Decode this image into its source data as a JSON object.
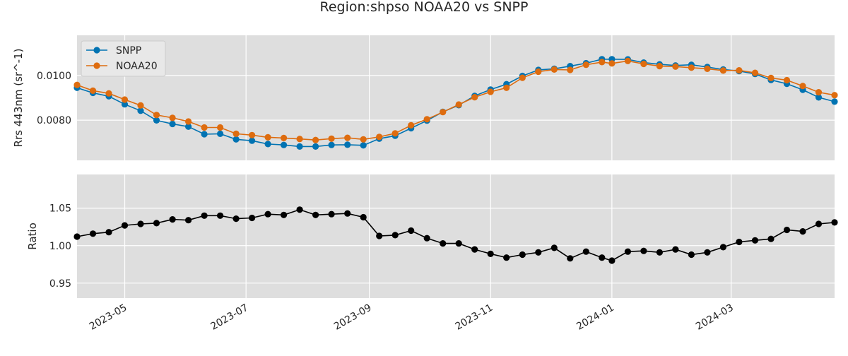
{
  "chart_data": {
    "title": "Region:shpso NOAA20 vs SNPP",
    "type": "line",
    "x_dates": [
      "2023-04-07",
      "2023-04-15",
      "2023-04-23",
      "2023-05-01",
      "2023-05-09",
      "2023-05-17",
      "2023-05-25",
      "2023-06-02",
      "2023-06-10",
      "2023-06-18",
      "2023-06-26",
      "2023-07-04",
      "2023-07-12",
      "2023-07-20",
      "2023-07-28",
      "2023-08-05",
      "2023-08-13",
      "2023-08-21",
      "2023-08-29",
      "2023-09-06",
      "2023-09-14",
      "2023-09-22",
      "2023-09-30",
      "2023-10-08",
      "2023-10-16",
      "2023-10-24",
      "2023-11-01",
      "2023-11-09",
      "2023-11-17",
      "2023-11-25",
      "2023-12-03",
      "2023-12-11",
      "2023-12-19",
      "2023-12-27",
      "2024-01-01",
      "2024-01-09",
      "2024-01-17",
      "2024-01-25",
      "2024-02-02",
      "2024-02-10",
      "2024-02-18",
      "2024-02-26",
      "2024-03-05",
      "2024-03-13",
      "2024-03-21",
      "2024-03-29",
      "2024-04-06",
      "2024-04-14",
      "2024-04-22"
    ],
    "x_ticks": [
      "2023-05",
      "2023-07",
      "2023-09",
      "2023-11",
      "2024-01",
      "2024-03"
    ],
    "x_range": [
      "2023-04-07",
      "2024-04-22"
    ],
    "panels": [
      {
        "ylabel": "Rrs 443nm (sr^-1)",
        "ylim": [
          0.0062,
          0.0118
        ],
        "yticks": [
          "0.0080",
          "0.0100"
        ],
        "legend": {
          "position": "top-left"
        },
        "series": [
          {
            "name": "SNPP",
            "color": "#0173b2",
            "values": [
              0.00945,
              0.00922,
              0.00907,
              0.00871,
              0.00842,
              0.00799,
              0.00783,
              0.00771,
              0.00737,
              0.00739,
              0.00714,
              0.00708,
              0.00693,
              0.00689,
              0.00682,
              0.00682,
              0.00689,
              0.0069,
              0.00687,
              0.00717,
              0.0073,
              0.00764,
              0.00798,
              0.00837,
              0.00867,
              0.00909,
              0.00937,
              0.00961,
              0.00998,
              0.01025,
              0.0103,
              0.01042,
              0.01055,
              0.01073,
              0.01073,
              0.01072,
              0.01058,
              0.0105,
              0.01045,
              0.01048,
              0.01038,
              0.01027,
              0.0102,
              0.01007,
              0.0098,
              0.00963,
              0.00936,
              0.00902,
              0.00883
            ]
          },
          {
            "name": "NOAA20",
            "color": "#de6c0f",
            "values": [
              0.00958,
              0.00932,
              0.0092,
              0.00892,
              0.00866,
              0.00823,
              0.0081,
              0.00794,
              0.00767,
              0.00767,
              0.00739,
              0.00733,
              0.00723,
              0.0072,
              0.00716,
              0.00711,
              0.00717,
              0.00721,
              0.00714,
              0.00725,
              0.00741,
              0.00777,
              0.00804,
              0.00836,
              0.0087,
              0.00903,
              0.00927,
              0.00945,
              0.0099,
              0.01017,
              0.01027,
              0.01025,
              0.01048,
              0.0106,
              0.01054,
              0.01065,
              0.01052,
              0.01042,
              0.0104,
              0.01035,
              0.0103,
              0.01022,
              0.01023,
              0.01012,
              0.00989,
              0.00979,
              0.00953,
              0.00925,
              0.00912
            ]
          }
        ]
      },
      {
        "ylabel": "Ratio",
        "ylim": [
          0.93,
          1.095
        ],
        "yticks": [
          "0.95",
          "1.00",
          "1.05"
        ],
        "series": [
          {
            "name": "",
            "color": "#000000",
            "values": [
              1.012,
              1.016,
              1.018,
              1.027,
              1.029,
              1.03,
              1.035,
              1.034,
              1.04,
              1.04,
              1.036,
              1.037,
              1.042,
              1.041,
              1.048,
              1.041,
              1.042,
              1.043,
              1.038,
              1.013,
              1.014,
              1.02,
              1.01,
              1.003,
              1.003,
              0.995,
              0.989,
              0.984,
              0.988,
              0.991,
              0.997,
              0.983,
              0.992,
              0.984,
              0.98,
              0.992,
              0.993,
              0.991,
              0.995,
              0.988,
              0.991,
              0.998,
              1.005,
              1.007,
              1.009,
              1.021,
              1.019,
              1.029,
              1.031
            ]
          }
        ]
      }
    ],
    "style": {
      "axes_background": "#dedede",
      "grid_color": "#ffffff"
    }
  }
}
